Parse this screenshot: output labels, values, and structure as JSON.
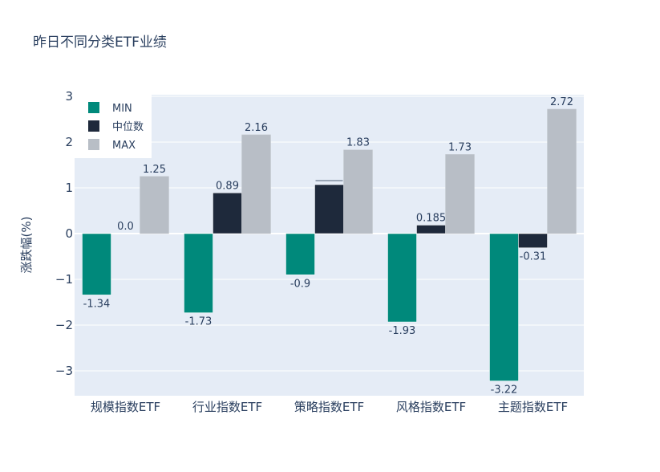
{
  "title": "昨日不同分类ETF业绩",
  "chart_data": {
    "type": "bar",
    "title": "昨日不同分类ETF业绩",
    "xlabel": "",
    "ylabel": "涨跌幅(%)",
    "ylim": [
      -3.55,
      3.05
    ],
    "yticks": [
      3,
      2,
      1,
      0,
      -1,
      -2,
      -3
    ],
    "ytick_labels": [
      "3",
      "2",
      "1",
      "0",
      "−1",
      "−2",
      "−3"
    ],
    "grid": true,
    "legend_position": "top-left",
    "categories": [
      "规模指数ETF",
      "行业指数ETF",
      "策略指数ETF",
      "风格指数ETF",
      "主题指数ETF"
    ],
    "series": [
      {
        "name": "MIN",
        "color": "#00897b",
        "values": [
          -1.34,
          -1.73,
          -0.9,
          -1.93,
          -3.22
        ],
        "labels": [
          "-1.34",
          "-1.73",
          "-0.9",
          "-1.93",
          "-3.22"
        ]
      },
      {
        "name": "中位数",
        "color": "#1e293b",
        "values": [
          0.0,
          0.89,
          1.07,
          0.185,
          -0.31
        ],
        "labels": [
          "0.0",
          "0.89",
          "",
          "0.185",
          "-0.31"
        ]
      },
      {
        "name": "MAX",
        "color": "#b8bec6",
        "values": [
          1.25,
          2.16,
          1.83,
          1.73,
          2.72
        ],
        "labels": [
          "1.25",
          "2.16",
          "1.83",
          "1.73",
          "2.72"
        ]
      }
    ]
  }
}
